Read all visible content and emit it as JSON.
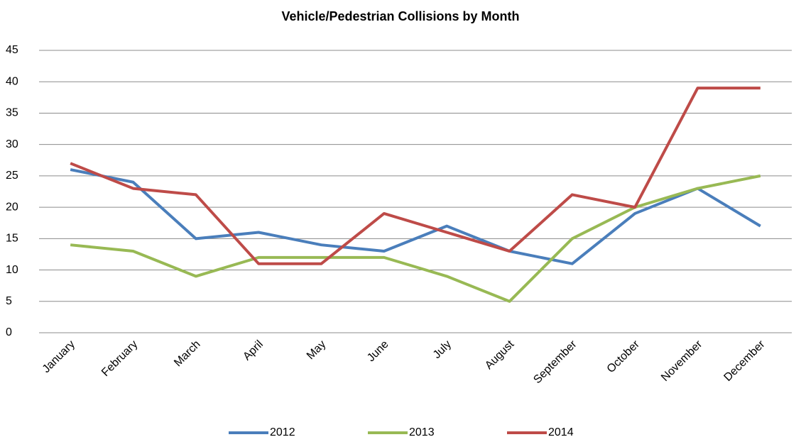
{
  "chart_data": {
    "type": "line",
    "title": "Vehicle/Pedestrian Collisions by Month",
    "categories": [
      "January",
      "February",
      "March",
      "April",
      "May",
      "June",
      "July",
      "August",
      "September",
      "October",
      "November",
      "December"
    ],
    "series": [
      {
        "name": "2012",
        "color": "#4a7ebb",
        "values": [
          26,
          24,
          15,
          16,
          14,
          13,
          17,
          13,
          11,
          19,
          23,
          17
        ]
      },
      {
        "name": "2013",
        "color": "#98b954",
        "values": [
          14,
          13,
          9,
          12,
          12,
          12,
          9,
          5,
          15,
          20,
          23,
          25
        ]
      },
      {
        "name": "2014",
        "color": "#be4b48",
        "values": [
          27,
          23,
          22,
          11,
          11,
          19,
          16,
          13,
          22,
          20,
          39,
          39
        ]
      }
    ],
    "ylim": [
      0,
      45
    ],
    "yticks": [
      0,
      5,
      10,
      15,
      20,
      25,
      30,
      35,
      40,
      45
    ],
    "grid": true,
    "legend": "bottom"
  }
}
